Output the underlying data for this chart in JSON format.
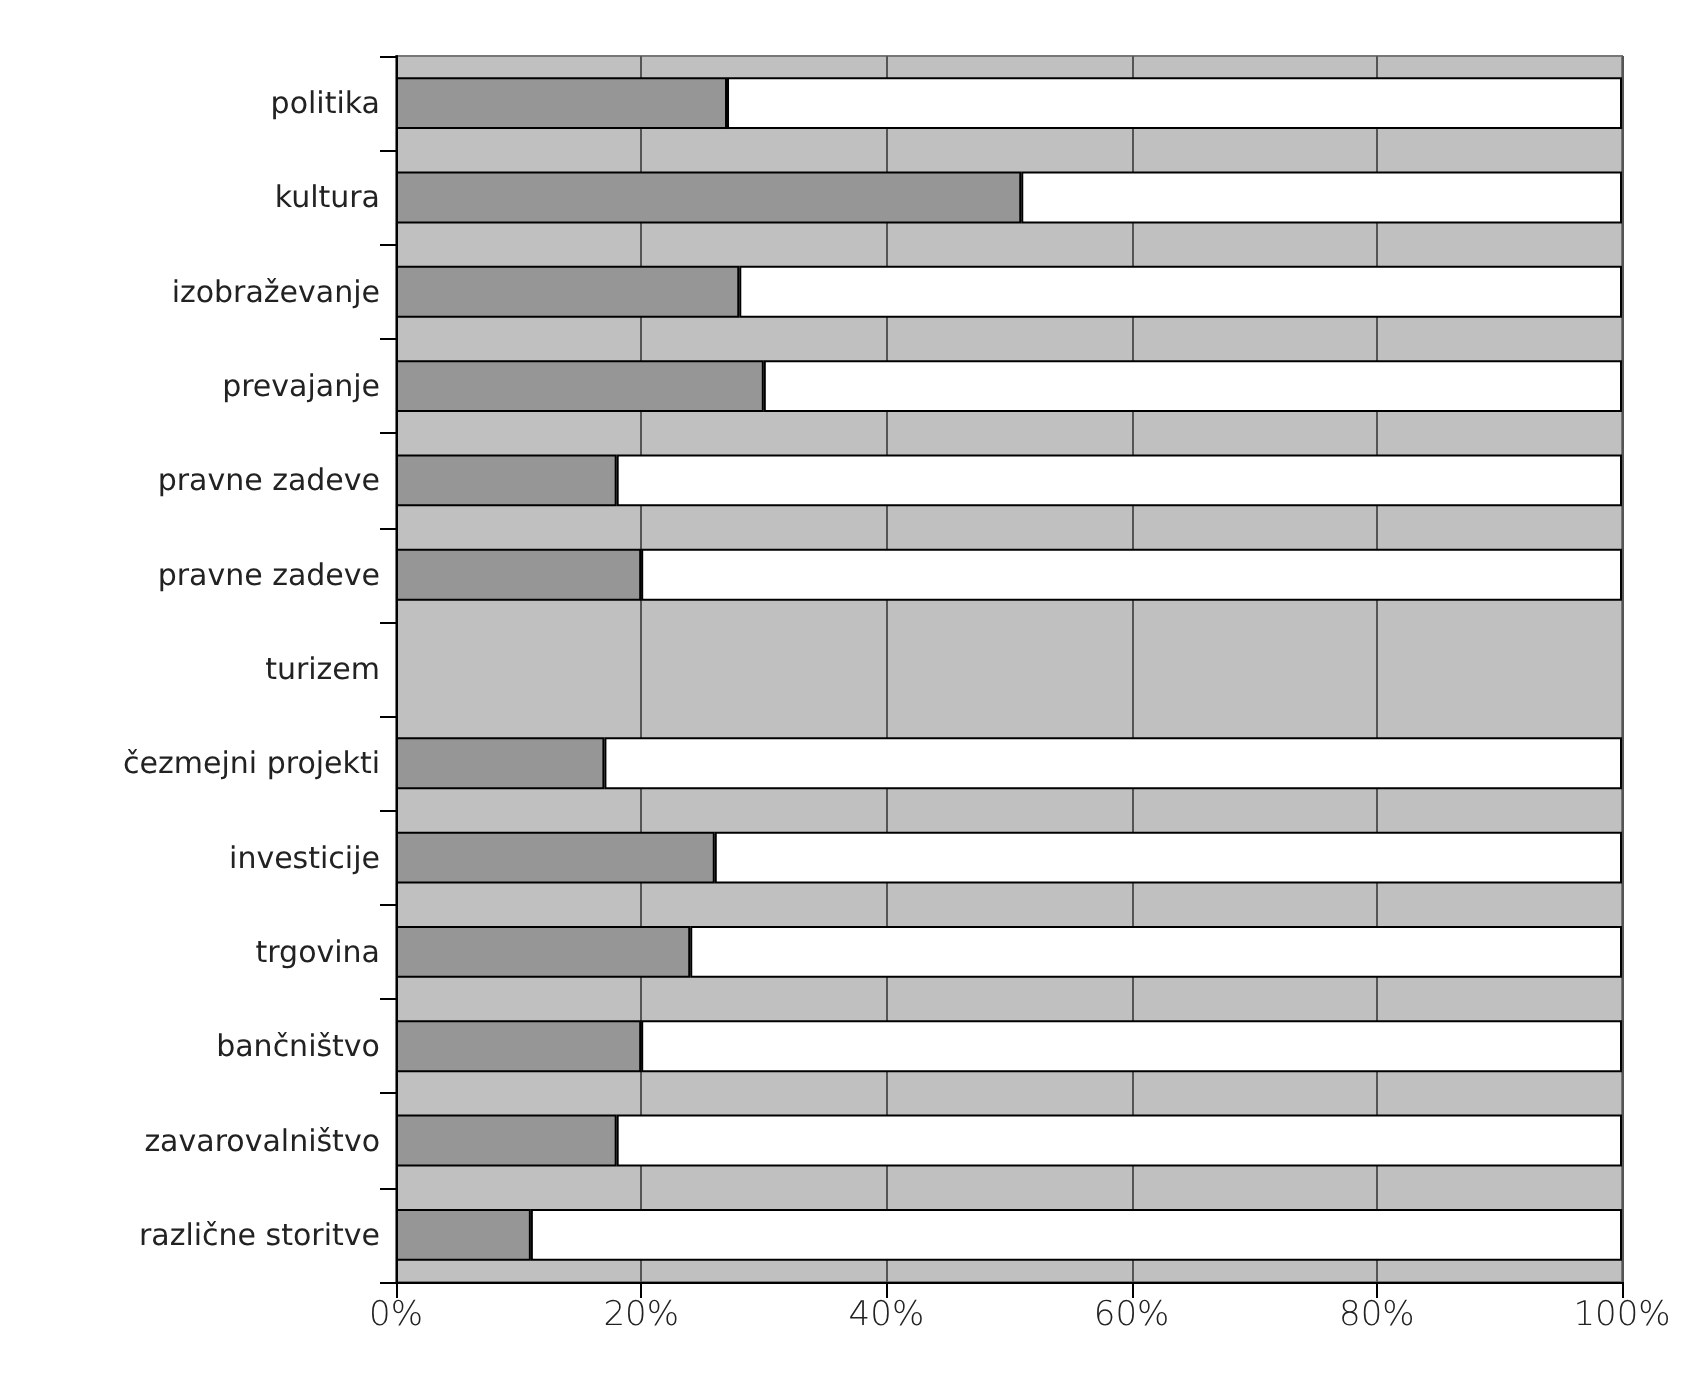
{
  "chart_data": {
    "type": "bar",
    "orientation": "horizontal",
    "stacked": true,
    "categories": [
      "politika",
      "kultura",
      "izobraževanje",
      "prevajanje",
      "pravne zadeve",
      "pravne zadeve",
      "turizem",
      "čezmejni projekti",
      "investicije",
      "trgovina",
      "bančništvo",
      "zavarovalništvo",
      "različne storitve"
    ],
    "series": [
      {
        "color": "#969696",
        "values": [
          27,
          51,
          28,
          30,
          18,
          20,
          null,
          17,
          26,
          24,
          20,
          18,
          11
        ]
      },
      {
        "color": "#ffffff",
        "values": [
          73,
          49,
          72,
          70,
          82,
          80,
          null,
          83,
          74,
          76,
          80,
          82,
          89
        ]
      }
    ],
    "xlim": [
      0,
      100
    ],
    "xticks": [
      {
        "value": 0,
        "label": "0%"
      },
      {
        "value": 20,
        "label": "20%"
      },
      {
        "value": 40,
        "label": "40%"
      },
      {
        "value": 60,
        "label": "60%"
      },
      {
        "value": 80,
        "label": "80%"
      },
      {
        "value": 100,
        "label": "100%"
      }
    ],
    "grid": "x"
  }
}
